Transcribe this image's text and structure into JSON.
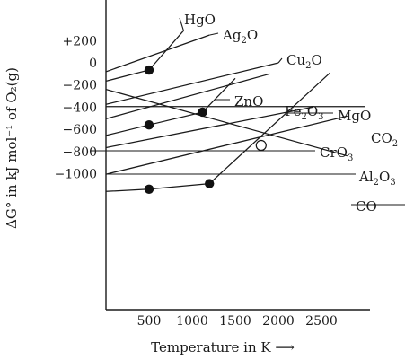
{
  "chart_data": {
    "type": "line",
    "title": "",
    "xlabel": "Temperature in K ⟶",
    "ylabel": "ΔG° in kJ mol⁻¹ of O₂(g)",
    "x_ticks": [
      500,
      1000,
      1500,
      2000,
      2500
    ],
    "y_ticks": [
      200,
      0,
      -200,
      -400,
      -600,
      -800,
      -1000
    ],
    "y_tick_labels": [
      "+200",
      "0",
      "−200",
      "−400",
      "−600",
      "−800",
      "−1000"
    ],
    "xlim": [
      0,
      3000
    ],
    "ylim": [
      -1300,
      280
    ],
    "grid": false,
    "series": [
      {
        "name": "HgO",
        "label": [
          "HgO"
        ],
        "points": [
          [
            0,
            -165
          ],
          [
            500,
            -65
          ],
          [
            900,
            290
          ]
        ],
        "markers": [
          [
            500,
            -65
          ]
        ]
      },
      {
        "name": "Ag2O",
        "label": [
          "Ag",
          "2",
          "O"
        ],
        "points": [
          [
            0,
            -80
          ],
          [
            1200,
            250
          ]
        ]
      },
      {
        "name": "Cu2O",
        "label": [
          "Cu",
          "2",
          "O"
        ],
        "points": [
          [
            0,
            -375
          ],
          [
            2000,
            0
          ]
        ]
      },
      {
        "name": "ZnO",
        "label": [
          "ZnO"
        ],
        "points": [
          [
            0,
            -655
          ],
          [
            500,
            -560
          ],
          [
            1120,
            -445
          ],
          [
            1500,
            -140
          ]
        ],
        "markers": [
          [
            500,
            -560
          ],
          [
            1120,
            -445
          ]
        ]
      },
      {
        "name": "Fe2O3",
        "label": [
          "Fe",
          "2",
          "O",
          "3"
        ],
        "points": [
          [
            0,
            -505
          ],
          [
            1900,
            -100
          ]
        ]
      },
      {
        "name": "MgO",
        "label": [
          "MgO"
        ],
        "points": [
          [
            0,
            -1160
          ],
          [
            500,
            -1140
          ],
          [
            1200,
            -1090
          ],
          [
            2600,
            -90
          ]
        ],
        "markers": [
          [
            500,
            -1140
          ],
          [
            1200,
            -1090
          ]
        ]
      },
      {
        "name": "CrO3",
        "label": [
          "CrO",
          "3"
        ],
        "points": [
          [
            0,
            -765
          ],
          [
            2400,
            -400
          ]
        ]
      },
      {
        "name": "Al2O3",
        "label": [
          "Al",
          "2",
          "O",
          "3"
        ],
        "points": [
          [
            0,
            -1005
          ],
          [
            2800,
            -480
          ]
        ]
      },
      {
        "name": "CO2",
        "label": [
          "CO",
          "2"
        ],
        "points": [
          [
            0,
            -395
          ],
          [
            3000,
            -395
          ]
        ]
      },
      {
        "name": "CO",
        "label": [
          "CO"
        ],
        "points": [
          [
            0,
            -240
          ],
          [
            2800,
            -840
          ]
        ]
      }
    ],
    "open_markers": [
      [
        1800,
        -745
      ]
    ]
  }
}
